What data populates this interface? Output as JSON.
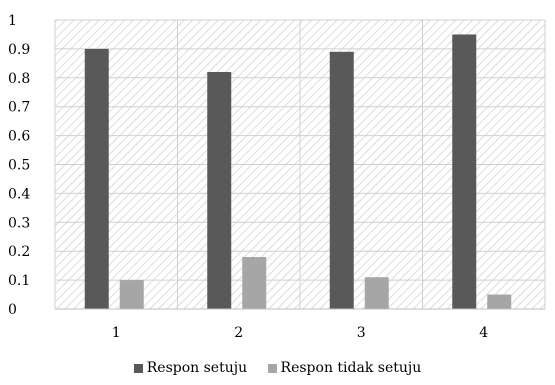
{
  "chart_data": {
    "type": "bar",
    "categories": [
      "1",
      "2",
      "3",
      "4"
    ],
    "series": [
      {
        "name": "Respon setuju",
        "values": [
          0.9,
          0.82,
          0.89,
          0.95
        ],
        "color": "#595959"
      },
      {
        "name": "Respon tidak setuju",
        "values": [
          0.1,
          0.18,
          0.11,
          0.05
        ],
        "color": "#a6a6a6"
      }
    ],
    "ylim": [
      0,
      1
    ],
    "yticks": [
      "0",
      "0.1",
      "0.2",
      "0.3",
      "0.4",
      "0.5",
      "0.6",
      "0.7",
      "0.8",
      "0.9",
      "1"
    ],
    "grid": true,
    "background": "hatched",
    "legend_position": "bottom",
    "title": "",
    "xlabel": "",
    "ylabel": ""
  }
}
